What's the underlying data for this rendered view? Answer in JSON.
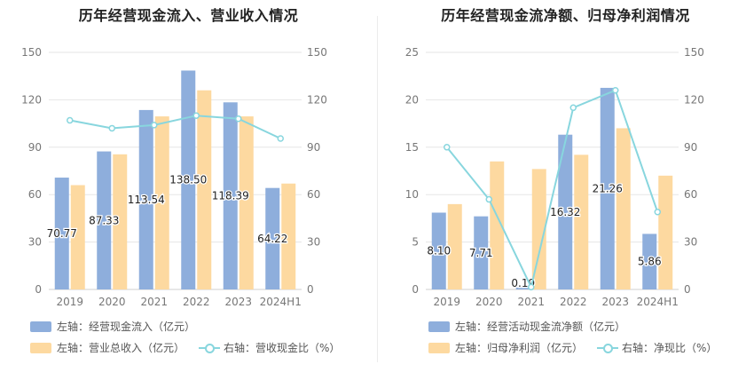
{
  "colors": {
    "blue": "#8eaedc",
    "orange": "#fdd9a0",
    "line": "#88d6de",
    "grid": "#e6e6e6",
    "tick": "#777777",
    "label": "#222222"
  },
  "chart_data": [
    {
      "type": "bar",
      "title": "历年经营现金流入、营业收入情况",
      "categories": [
        "2019",
        "2020",
        "2021",
        "2022",
        "2023",
        "2024H1"
      ],
      "left_axis": {
        "ylim": [
          0,
          150
        ],
        "ticks": [
          "0",
          "30",
          "60",
          "90",
          "120",
          "150"
        ]
      },
      "right_axis": {
        "ylim": [
          0,
          150
        ],
        "ticks": [
          "0",
          "30",
          "60",
          "90",
          "120",
          "150"
        ]
      },
      "series": [
        {
          "name": "左轴：经营现金流入（亿元）",
          "axis": "left",
          "kind": "bar",
          "color_key": "blue",
          "values": [
            70.77,
            87.33,
            113.54,
            138.5,
            118.39,
            64.22
          ],
          "labels": [
            "70.77",
            "87.33",
            "113.54",
            "138.50",
            "118.39",
            "64.22"
          ]
        },
        {
          "name": "左轴：营业总收入（亿元）",
          "axis": "left",
          "kind": "bar",
          "color_key": "orange",
          "values": [
            66,
            85.5,
            109.5,
            126,
            109.5,
            67
          ]
        },
        {
          "name": "右轴：营收现金比（%）",
          "axis": "right",
          "kind": "line",
          "color_key": "line",
          "values": [
            107,
            102,
            104,
            110,
            108,
            95.5
          ]
        }
      ]
    },
    {
      "type": "bar",
      "title": "历年经营现金流净额、归母净利润情况",
      "categories": [
        "2019",
        "2020",
        "2021",
        "2022",
        "2023",
        "2024H1"
      ],
      "left_axis": {
        "ylim": [
          0,
          25
        ],
        "ticks": [
          "0",
          "5",
          "10",
          "15",
          "20",
          "25"
        ]
      },
      "right_axis": {
        "ylim": [
          0,
          150
        ],
        "ticks": [
          "0",
          "30",
          "60",
          "90",
          "120",
          "150"
        ]
      },
      "series": [
        {
          "name": "左轴：经营活动现金流净额（亿元）",
          "axis": "left",
          "kind": "bar",
          "color_key": "blue",
          "values": [
            8.1,
            7.71,
            0.19,
            16.32,
            21.26,
            5.86
          ],
          "labels": [
            "8.10",
            "7.71",
            "0.19",
            "16.32",
            "21.26",
            "5.86"
          ]
        },
        {
          "name": "左轴：归母净利润（亿元）",
          "axis": "left",
          "kind": "bar",
          "color_key": "orange",
          "values": [
            9.0,
            13.5,
            12.7,
            14.2,
            17.0,
            12.0
          ]
        },
        {
          "name": "右轴：净现比（%）",
          "axis": "right",
          "kind": "line",
          "color_key": "line",
          "values": [
            90,
            57,
            1.5,
            115,
            126,
            49
          ]
        }
      ]
    }
  ]
}
